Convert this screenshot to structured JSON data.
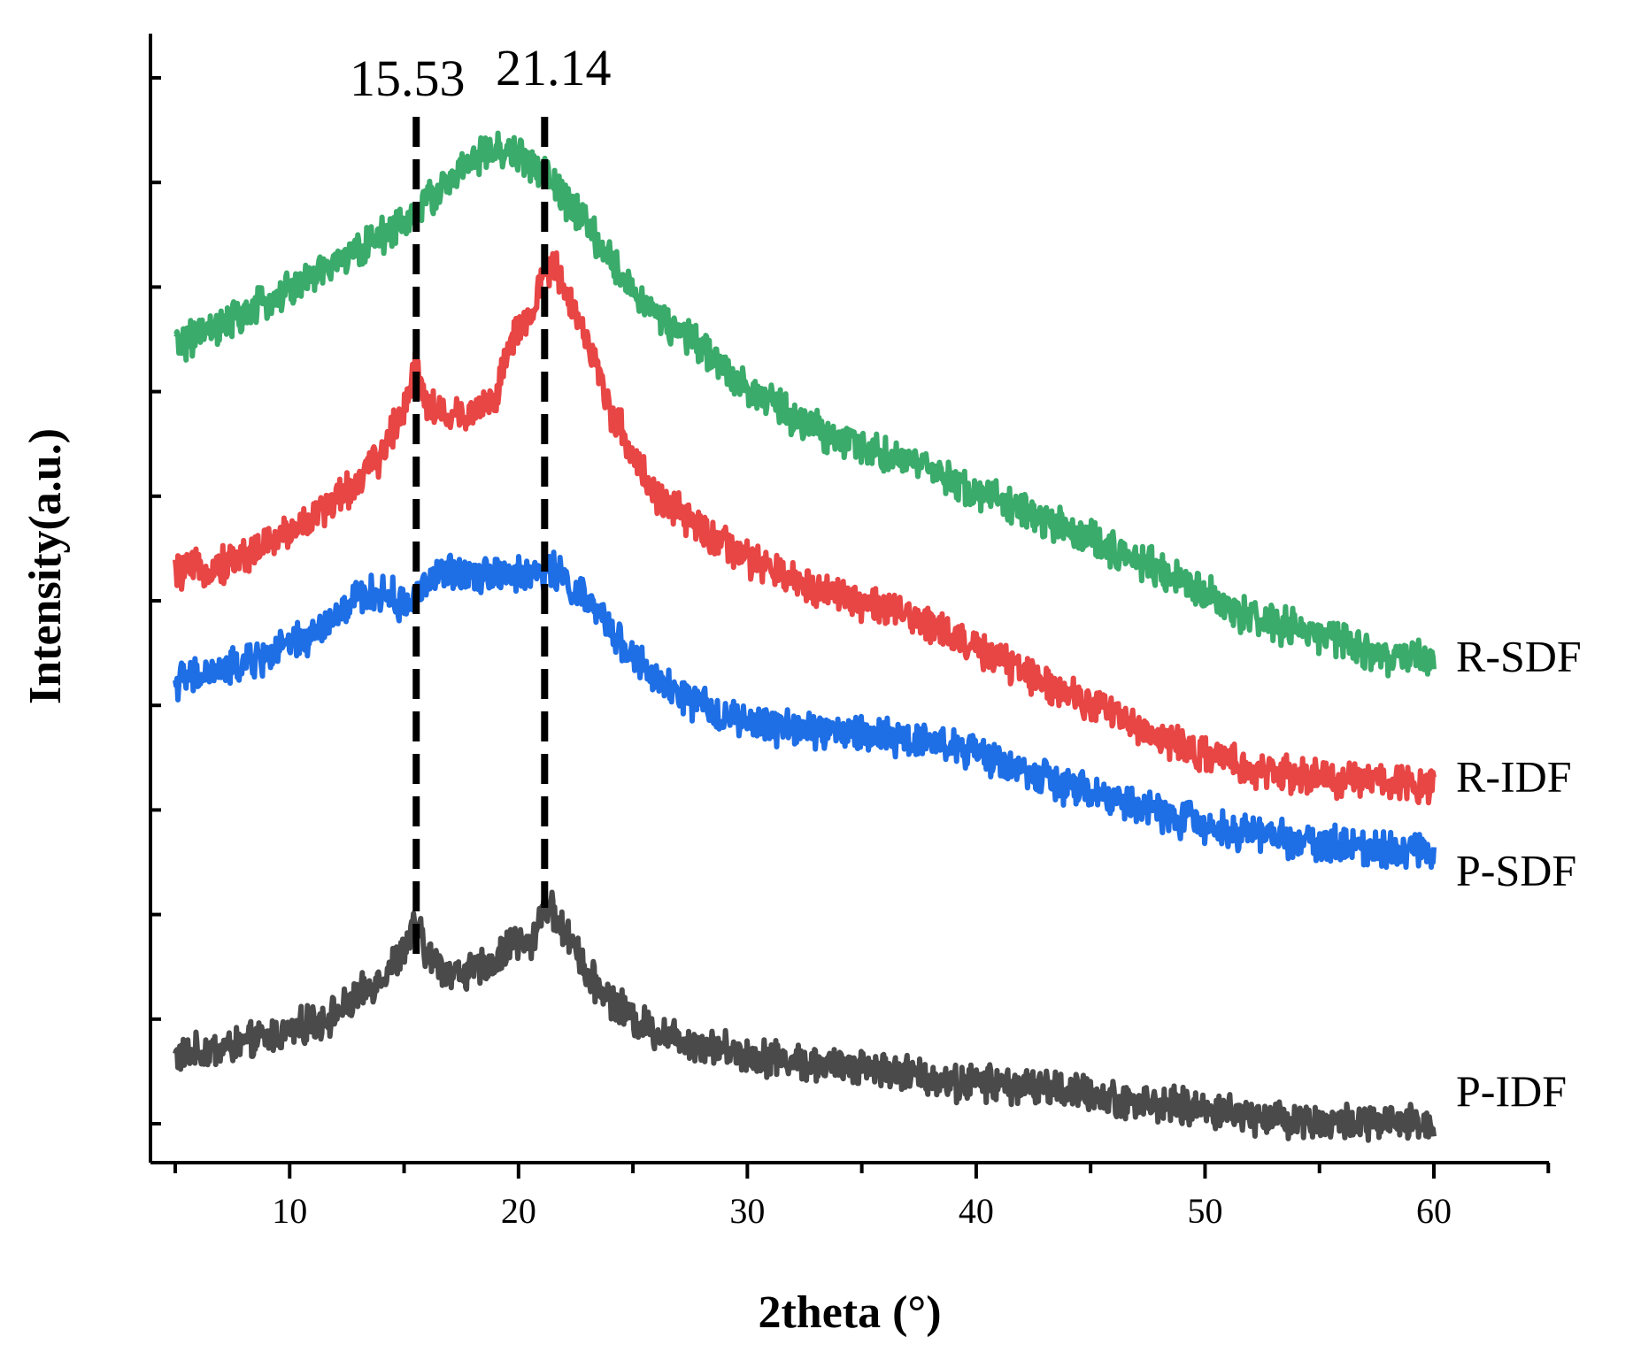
{
  "chart_data": {
    "type": "line",
    "title": "",
    "xlabel": "2theta (°)",
    "ylabel": "Intensity(a.u.)",
    "xlim": [
      5,
      65
    ],
    "x_ticks": [
      10,
      20,
      30,
      40,
      50,
      60
    ],
    "y_tick_count": 11,
    "y_tick_labels_shown": false,
    "grid": false,
    "series": [
      {
        "name": "P-IDF",
        "color": "#4a4a4a",
        "x": [
          5,
          8,
          10,
          12,
          13,
          14,
          15,
          15.53,
          16,
          17,
          18,
          19,
          19.8,
          20.5,
          21.14,
          21.5,
          22,
          22.5,
          23,
          24,
          25,
          26,
          28,
          30,
          32,
          34,
          35,
          36,
          38,
          39,
          40,
          42,
          44,
          46,
          48,
          50,
          52,
          55,
          58,
          60
        ],
        "values": [
          32,
          38,
          44,
          52,
          60,
          70,
          82,
          95,
          80,
          72,
          72,
          77,
          88,
          83,
          106,
          100,
          90,
          86,
          70,
          60,
          50,
          44,
          38,
          33,
          30,
          27,
          28,
          26,
          22,
          19,
          20,
          18,
          16,
          12,
          9,
          7,
          4,
          1,
          0,
          0
        ]
      },
      {
        "name": "P-SDF",
        "color": "#1e6ee6",
        "x": [
          5,
          7,
          9,
          11,
          12,
          13,
          14,
          14.5,
          15,
          16,
          17,
          18,
          19,
          20,
          21,
          21.5,
          22,
          23,
          24,
          25,
          26,
          28,
          30,
          32,
          34,
          36,
          38,
          40,
          42,
          44,
          46,
          48,
          50,
          52,
          54,
          56,
          58,
          60
        ],
        "values": [
          210,
          215,
          222,
          232,
          240,
          250,
          252,
          250,
          245,
          258,
          262,
          262,
          262,
          260,
          262,
          264,
          258,
          248,
          235,
          222,
          210,
          198,
          190,
          188,
          186,
          184,
          182,
          176,
          168,
          160,
          154,
          148,
          142,
          138,
          135,
          132,
          131,
          130
        ]
      },
      {
        "name": "R-IDF",
        "color": "#e84545",
        "x": [
          5,
          7,
          9,
          11,
          13,
          14,
          15,
          15.53,
          16,
          17,
          18,
          19,
          19.8,
          20.5,
          21.14,
          21.5,
          22,
          23,
          24,
          25,
          26,
          28,
          30,
          32,
          34,
          36,
          38,
          40,
          42,
          44,
          46,
          48,
          50,
          52,
          55,
          58,
          60
        ],
        "values": [
          262,
          265,
          275,
          288,
          305,
          318,
          340,
          362,
          342,
          335,
          338,
          345,
          375,
          380,
          405,
          408,
          398,
          372,
          340,
          318,
          298,
          282,
          268,
          258,
          252,
          244,
          238,
          225,
          215,
          205,
          195,
          183,
          175,
          168,
          164,
          162,
          162
        ]
      },
      {
        "name": "R-SDF",
        "color": "#3aab6a",
        "x": [
          5,
          7,
          9,
          11,
          13,
          15,
          16,
          17,
          18,
          19,
          20,
          21,
          22,
          23,
          24,
          25,
          26,
          28,
          30,
          32,
          34,
          36,
          38,
          40,
          42,
          44,
          46,
          48,
          50,
          52,
          55,
          58,
          60
        ],
        "values": [
          370,
          378,
          390,
          402,
          415,
          428,
          438,
          448,
          457,
          462,
          460,
          453,
          440,
          426,
          410,
          396,
          384,
          368,
          350,
          335,
          325,
          318,
          310,
          300,
          292,
          282,
          273,
          263,
          252,
          240,
          232,
          222,
          220
        ]
      }
    ],
    "annotations": [
      {
        "type": "vline",
        "x": 15.53,
        "label": "15.53",
        "style": "dashed"
      },
      {
        "type": "vline",
        "x": 21.14,
        "label": "21.14",
        "style": "dashed"
      }
    ],
    "legend": "series labels at right end of each curve"
  }
}
